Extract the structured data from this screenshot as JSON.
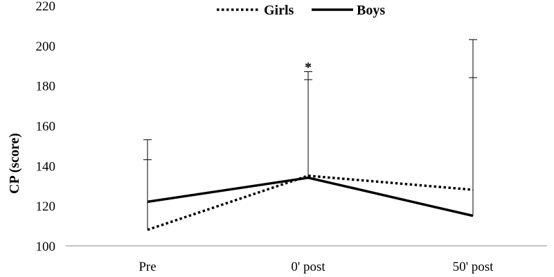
{
  "chart_data": {
    "type": "line",
    "categories": [
      "Pre",
      "0' post",
      "50' post"
    ],
    "ylabel": "CP (score)",
    "xlabel": "",
    "ylim": [
      100,
      220
    ],
    "yticks": [
      "100",
      "120",
      "140",
      "160",
      "180",
      "200",
      "220"
    ],
    "legend_position": "top-center",
    "grid": false,
    "series": [
      {
        "name": "Girls",
        "style": "dotted",
        "color": "#000000",
        "values": [
          108,
          135,
          128
        ],
        "error_upper": [
          143,
          183,
          203
        ]
      },
      {
        "name": "Boys",
        "style": "solid",
        "color": "#000000",
        "values": [
          122,
          134,
          115
        ],
        "error_upper": [
          153,
          187,
          184
        ]
      }
    ],
    "annotations": [
      {
        "text": "*",
        "category_index": 1,
        "y": 189
      }
    ]
  }
}
